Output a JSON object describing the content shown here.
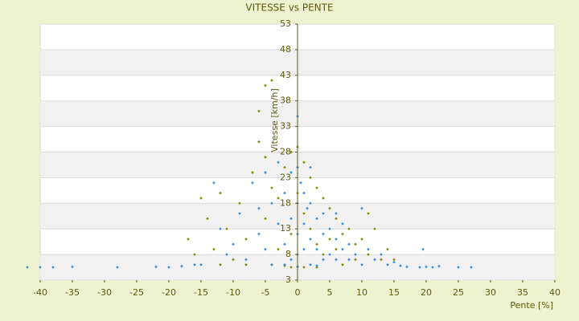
{
  "chart_data": {
    "type": "scatter",
    "title": "VITESSE vs PENTE",
    "x_label": "Pente [%]",
    "y_label": "Vitesse [km/h]",
    "xlim": [
      -40,
      40
    ],
    "xticks": [
      -40,
      -35,
      -30,
      -25,
      -20,
      -15,
      -10,
      -5,
      0,
      5,
      10,
      15,
      20,
      25,
      30,
      35,
      40
    ],
    "ylim": [
      3,
      53
    ],
    "yticks": [
      3,
      8,
      13,
      18,
      23,
      28,
      33,
      38,
      43,
      48,
      53
    ],
    "grid": true,
    "series": [
      {
        "color": "#8a8a10",
        "x": [
          -17,
          -16,
          -15,
          -14,
          -13,
          -12,
          -11,
          -10,
          -9,
          -8,
          -7,
          -6,
          -6,
          -5,
          -5,
          -5,
          -4,
          -4,
          -4,
          -3,
          -3,
          -2,
          -2,
          -1,
          -1,
          -1,
          0,
          0,
          0,
          1,
          1,
          1,
          2,
          2,
          3,
          3,
          4,
          4,
          5,
          5,
          6,
          6,
          7,
          7,
          8,
          9,
          9,
          10,
          11,
          11,
          12,
          13,
          14,
          15,
          3,
          -8,
          -12
        ],
        "values": [
          11,
          8,
          19,
          15,
          9,
          20,
          13,
          7,
          18,
          11,
          24,
          36,
          30,
          41,
          27,
          15,
          42,
          21,
          6,
          19,
          9,
          25,
          5.8,
          28,
          12,
          5.5,
          29,
          20,
          5.6,
          26,
          16,
          5.5,
          23,
          13,
          21,
          10,
          19,
          8,
          17,
          11,
          15,
          9,
          12,
          6,
          13,
          10,
          7,
          11,
          16,
          8,
          13,
          7,
          9,
          7,
          5.5,
          6,
          6
        ]
      },
      {
        "color": "#3c8fd6",
        "x": [
          -42,
          -40,
          -38,
          -35,
          -28,
          -22,
          -20,
          -18,
          -16,
          -15,
          -13,
          -12,
          -11,
          -10,
          -9,
          -8,
          -7,
          -6,
          -5,
          -5,
          -4,
          -4,
          -3,
          -3,
          -2,
          -2,
          -1,
          -1,
          -1,
          0,
          0,
          0,
          0,
          0,
          0.5,
          1,
          1,
          1,
          1.5,
          2,
          2,
          2,
          3,
          3,
          4,
          4,
          4,
          5,
          5,
          6,
          6,
          7,
          7,
          8,
          8,
          9,
          10,
          10,
          11,
          12,
          13,
          14,
          15,
          16,
          17,
          19,
          19.5,
          20,
          21,
          22,
          25,
          27,
          2,
          -2,
          0,
          3,
          -6,
          6
        ],
        "values": [
          5.5,
          5.5,
          5.5,
          5.6,
          5.5,
          5.6,
          5.5,
          5.7,
          6,
          6,
          22,
          13,
          8,
          10,
          16,
          7,
          22,
          12,
          24,
          9,
          18,
          6,
          26,
          14,
          20,
          10,
          24,
          15,
          7,
          35,
          25,
          18,
          12,
          8,
          22,
          20,
          14,
          9,
          17,
          18,
          11,
          6,
          15,
          9,
          16,
          12,
          7,
          13,
          8,
          11,
          7,
          14,
          9,
          10,
          7,
          8,
          17,
          6,
          9,
          7,
          8,
          6,
          6.5,
          5.8,
          5.6,
          5.5,
          9,
          5.6,
          5.5,
          5.7,
          5.5,
          5.5,
          25,
          6,
          5.6,
          5.8,
          17,
          16
        ]
      }
    ]
  }
}
